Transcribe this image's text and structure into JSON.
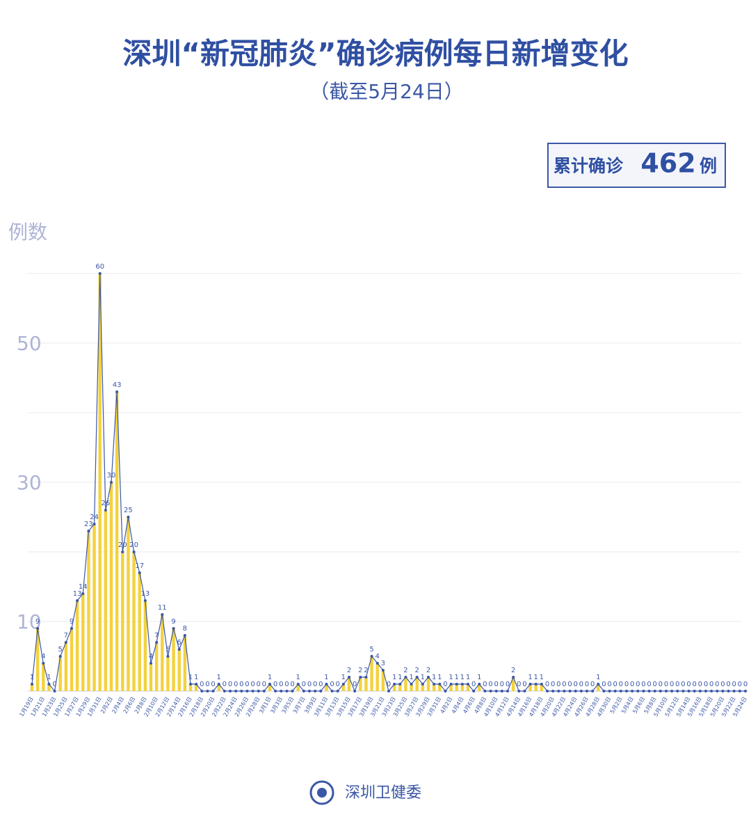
{
  "chart_data": {
    "type": "line",
    "title": "深圳“新冠肺炎”确诊病例每日新增变化",
    "subtitle": "（截至5月24日）",
    "total_label": "累计确诊",
    "total_value": 462,
    "total_unit": "例",
    "y_label": "例数",
    "source": "深圳卫健委",
    "color": "#3b57a6",
    "bar_color": "#f3d23c",
    "ylim": [
      0,
      60
    ],
    "yticks": [
      10,
      30,
      50
    ],
    "ygrid": [
      10,
      20,
      30,
      40,
      50,
      60
    ],
    "categories": [
      "1月19日",
      null,
      "1月21日",
      null,
      "1月23日",
      null,
      "1月25日",
      null,
      "1月27日",
      null,
      "1月29日",
      null,
      "1月31日",
      null,
      "2月2日",
      null,
      "2月4日",
      null,
      "2月6日",
      null,
      "2月8日",
      null,
      "2月10日",
      null,
      "2月12日",
      null,
      "2月14日",
      null,
      "2月16日",
      null,
      "2月18日",
      null,
      "2月20日",
      null,
      "2月22日",
      null,
      "2月24日",
      null,
      "2月26日",
      null,
      "2月28日",
      null,
      "3月1日",
      null,
      "3月3日",
      null,
      "3月5日",
      null,
      "3月7日",
      null,
      "3月9日",
      null,
      "3月11日",
      null,
      "3月13日",
      null,
      "3月15日",
      null,
      "3月17日",
      null,
      "3月19日",
      null,
      "3月21日",
      null,
      "3月23日",
      null,
      "3月25日",
      null,
      "3月27日",
      null,
      "3月29日",
      null,
      "3月31日",
      null,
      "4月2日",
      null,
      "4月4日",
      null,
      "4月6日",
      null,
      "4月8日",
      null,
      "4月10日",
      null,
      "4月12日",
      null,
      "4月14日",
      null,
      "4月16日",
      null,
      "4月18日",
      null,
      "4月20日",
      null,
      "4月22日",
      null,
      "4月24日",
      null,
      "4月26日",
      null,
      "4月28日",
      null,
      "4月30日",
      null,
      "5月2日",
      null,
      "5月4日",
      null,
      "5月6日",
      null,
      "5月8日",
      null,
      "5月10日",
      null,
      "5月12日",
      null,
      "5月14日",
      null,
      "5月16日",
      null,
      "5月18日",
      null,
      "5月20日",
      null,
      "5月22日",
      null,
      "5月24日"
    ],
    "values": [
      1,
      9,
      4,
      1,
      0,
      5,
      7,
      9,
      13,
      14,
      23,
      24,
      60,
      26,
      30,
      43,
      20,
      25,
      20,
      17,
      13,
      4,
      7,
      11,
      5,
      9,
      6,
      8,
      1,
      1,
      0,
      0,
      0,
      1,
      0,
      0,
      0,
      0,
      0,
      0,
      0,
      0,
      1,
      0,
      0,
      0,
      0,
      1,
      0,
      0,
      0,
      0,
      1,
      0,
      0,
      1,
      2,
      0,
      2,
      2,
      5,
      4,
      3,
      0,
      1,
      1,
      2,
      1,
      2,
      1,
      2,
      1,
      1,
      0,
      1,
      1,
      1,
      1,
      0,
      1,
      0,
      0,
      0,
      0,
      0,
      2,
      0,
      0,
      1,
      1,
      1,
      0,
      0,
      0,
      0,
      0,
      0,
      0,
      0,
      0,
      1,
      0,
      0,
      0,
      0,
      0,
      0,
      0,
      0,
      0,
      0,
      0,
      0,
      0,
      0,
      0,
      0,
      0,
      0,
      0,
      0,
      0,
      0,
      0,
      0,
      0,
      0
    ]
  }
}
